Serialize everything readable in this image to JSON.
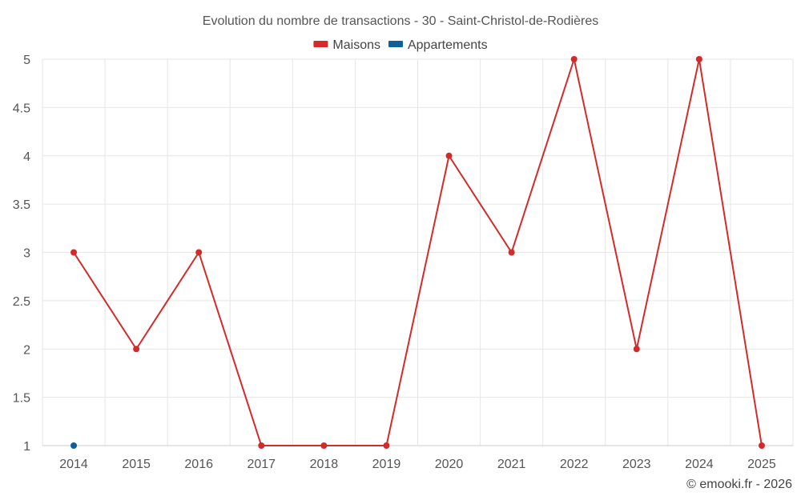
{
  "chart_data": {
    "type": "line",
    "title": "Evolution du nombre de transactions - 30 - Saint-Christol-de-Rodières",
    "categories": [
      "2014",
      "2015",
      "2016",
      "2017",
      "2018",
      "2019",
      "2020",
      "2021",
      "2022",
      "2023",
      "2024",
      "2025"
    ],
    "series": [
      {
        "name": "Maisons",
        "color": "#d42a2a",
        "values": [
          3,
          2,
          3,
          1,
          1,
          1,
          4,
          3,
          5,
          2,
          5,
          1
        ]
      },
      {
        "name": "Appartements",
        "color": "#0f5f9a",
        "values": [
          1,
          null,
          null,
          null,
          null,
          null,
          null,
          null,
          null,
          null,
          null,
          null
        ]
      }
    ],
    "ylim": [
      1,
      5
    ],
    "yticks": [
      "1",
      "1.5",
      "2",
      "2.5",
      "3",
      "3.5",
      "4",
      "4.5",
      "5"
    ],
    "grid": true,
    "legend_position": "top-center"
  },
  "credit": "© emooki.fr - 2026"
}
